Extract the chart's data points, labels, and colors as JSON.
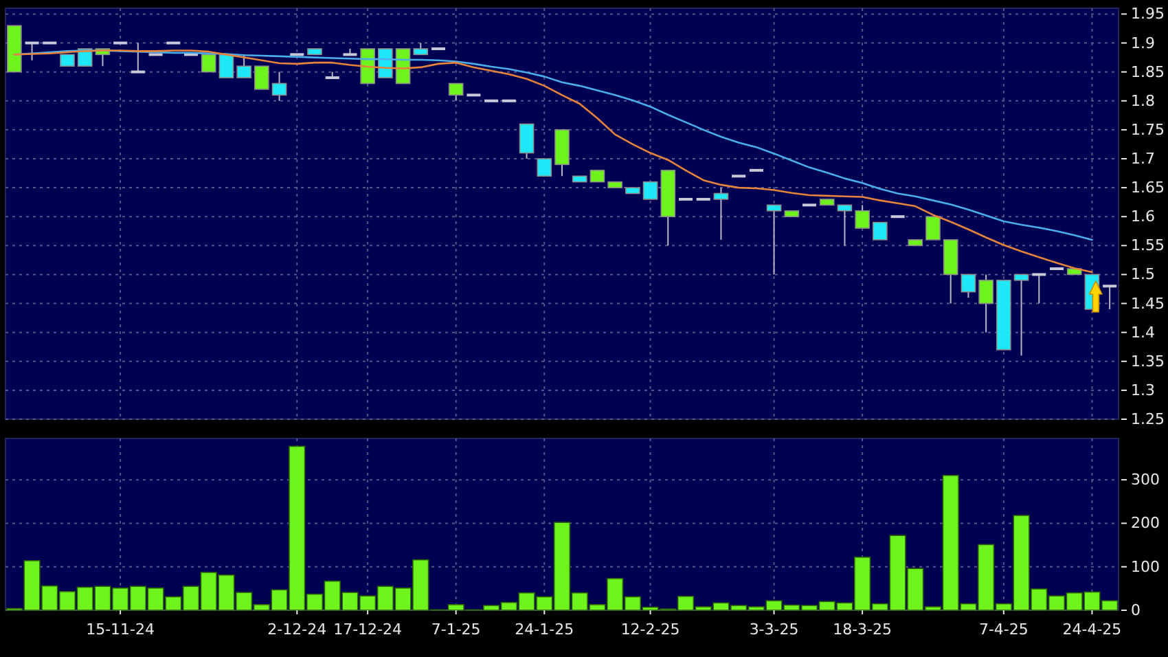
{
  "chart_data": [
    {
      "type": "candlestick",
      "categories": [
        null,
        null,
        null,
        null,
        null,
        null,
        null,
        null,
        null,
        null,
        null,
        null,
        null,
        null,
        null,
        null,
        null,
        null,
        null,
        null,
        null,
        null,
        null,
        null,
        null,
        null,
        null,
        null,
        null,
        null,
        null,
        null,
        null,
        null,
        null,
        null,
        null,
        null,
        null,
        null,
        null,
        null,
        null,
        null,
        null,
        null,
        null,
        null,
        null,
        null,
        null,
        null,
        null,
        null,
        null,
        null,
        null,
        null,
        null,
        null,
        null,
        null,
        null
      ],
      "ohlc": [
        [
          1.85,
          1.93,
          1.85,
          1.93
        ],
        [
          1.9,
          1.9,
          1.87,
          1.9
        ],
        [
          1.9,
          1.9,
          1.9,
          1.9
        ],
        [
          1.88,
          1.88,
          1.86,
          1.86
        ],
        [
          1.89,
          1.89,
          1.86,
          1.86
        ],
        [
          1.88,
          1.89,
          1.86,
          1.89
        ],
        [
          1.9,
          1.9,
          1.9,
          1.9
        ],
        [
          1.85,
          1.9,
          1.85,
          1.85
        ],
        [
          1.88,
          1.88,
          1.88,
          1.88
        ],
        [
          1.9,
          1.9,
          1.9,
          1.9
        ],
        [
          1.88,
          1.88,
          1.88,
          1.88
        ],
        [
          1.85,
          1.88,
          1.85,
          1.88
        ],
        [
          1.88,
          1.88,
          1.84,
          1.84
        ],
        [
          1.86,
          1.88,
          1.84,
          1.84
        ],
        [
          1.82,
          1.86,
          1.82,
          1.86
        ],
        [
          1.83,
          1.85,
          1.8,
          1.81
        ],
        [
          1.88,
          1.88,
          1.88,
          1.88
        ],
        [
          1.89,
          1.89,
          1.88,
          1.88
        ],
        [
          1.84,
          1.85,
          1.84,
          1.84
        ],
        [
          1.88,
          1.89,
          1.88,
          1.88
        ],
        [
          1.83,
          1.89,
          1.83,
          1.89
        ],
        [
          1.89,
          1.89,
          1.84,
          1.84
        ],
        [
          1.83,
          1.89,
          1.83,
          1.89
        ],
        [
          1.89,
          1.9,
          1.88,
          1.88
        ],
        [
          1.89,
          1.89,
          1.89,
          1.89
        ],
        [
          1.81,
          1.83,
          1.8,
          1.83
        ],
        [
          1.81,
          1.81,
          1.81,
          1.81
        ],
        [
          1.8,
          1.8,
          1.8,
          1.8
        ],
        [
          1.8,
          1.8,
          1.8,
          1.8
        ],
        [
          1.76,
          1.76,
          1.7,
          1.71
        ],
        [
          1.7,
          1.7,
          1.67,
          1.67
        ],
        [
          1.69,
          1.75,
          1.67,
          1.75
        ],
        [
          1.67,
          1.67,
          1.66,
          1.66
        ],
        [
          1.66,
          1.68,
          1.66,
          1.68
        ],
        [
          1.65,
          1.66,
          1.65,
          1.66
        ],
        [
          1.65,
          1.65,
          1.64,
          1.64
        ],
        [
          1.66,
          1.66,
          1.63,
          1.63
        ],
        [
          1.6,
          1.68,
          1.55,
          1.68
        ],
        [
          1.63,
          1.63,
          1.63,
          1.63
        ],
        [
          1.63,
          1.63,
          1.63,
          1.63
        ],
        [
          1.64,
          1.65,
          1.56,
          1.63
        ],
        [
          1.67,
          1.67,
          1.67,
          1.67
        ],
        [
          1.68,
          1.68,
          1.68,
          1.68
        ],
        [
          1.62,
          1.62,
          1.5,
          1.61
        ],
        [
          1.6,
          1.61,
          1.6,
          1.61
        ],
        [
          1.62,
          1.62,
          1.62,
          1.62
        ],
        [
          1.62,
          1.63,
          1.62,
          1.63
        ],
        [
          1.62,
          1.62,
          1.55,
          1.61
        ],
        [
          1.58,
          1.62,
          1.58,
          1.61
        ],
        [
          1.59,
          1.59,
          1.56,
          1.56
        ],
        [
          1.6,
          1.6,
          1.6,
          1.6
        ],
        [
          1.55,
          1.56,
          1.55,
          1.56
        ],
        [
          1.56,
          1.6,
          1.56,
          1.6
        ],
        [
          1.5,
          1.56,
          1.45,
          1.56
        ],
        [
          1.5,
          1.5,
          1.46,
          1.47
        ],
        [
          1.45,
          1.5,
          1.4,
          1.49
        ],
        [
          1.49,
          1.49,
          1.37,
          1.37
        ],
        [
          1.5,
          1.5,
          1.36,
          1.49
        ],
        [
          1.5,
          1.5,
          1.45,
          1.5
        ],
        [
          1.51,
          1.51,
          1.51,
          1.51
        ],
        [
          1.5,
          1.51,
          1.5,
          1.51
        ],
        [
          1.5,
          1.5,
          1.44,
          1.44
        ],
        [
          1.48,
          1.48,
          1.44,
          1.48
        ]
      ],
      "colors": [
        "#6ef41c",
        "#c8c8d8",
        "#c8c8d8",
        "#1ee8f8",
        "#1ee8f8",
        "#6ef41c",
        "#c8c8d8",
        "#c8c8d8",
        "#c8c8d8",
        "#c8c8d8",
        "#c8c8d8",
        "#6ef41c",
        "#1ee8f8",
        "#1ee8f8",
        "#6ef41c",
        "#1ee8f8",
        "#c8c8d8",
        "#1ee8f8",
        "#c8c8d8",
        "#c8c8d8",
        "#6ef41c",
        "#1ee8f8",
        "#6ef41c",
        "#1ee8f8",
        "#c8c8d8",
        "#6ef41c",
        "#c8c8d8",
        "#c8c8d8",
        "#c8c8d8",
        "#1ee8f8",
        "#1ee8f8",
        "#6ef41c",
        "#1ee8f8",
        "#6ef41c",
        "#6ef41c",
        "#1ee8f8",
        "#1ee8f8",
        "#6ef41c",
        "#c8c8d8",
        "#c8c8d8",
        "#1ee8f8",
        "#c8c8d8",
        "#c8c8d8",
        "#1ee8f8",
        "#6ef41c",
        "#c8c8d8",
        "#6ef41c",
        "#1ee8f8",
        "#6ef41c",
        "#1ee8f8",
        "#c8c8d8",
        "#6ef41c",
        "#6ef41c",
        "#6ef41c",
        "#1ee8f8",
        "#6ef41c",
        "#1ee8f8",
        "#1ee8f8",
        "#c8c8d8",
        "#c8c8d8",
        "#6ef41c",
        "#1ee8f8",
        "#c8c8d8"
      ],
      "series": [
        {
          "type": "line",
          "color": "#4aaeea",
          "values": [
            1.88,
            1.882,
            1.884,
            1.886,
            1.887,
            1.887,
            1.886,
            1.885,
            1.884,
            1.883,
            1.883,
            1.882,
            1.881,
            1.879,
            1.878,
            1.877,
            1.876,
            1.875,
            1.874,
            1.873,
            1.872,
            1.872,
            1.871,
            1.871,
            1.87,
            1.868,
            1.864,
            1.859,
            1.855,
            1.849,
            1.842,
            1.832,
            1.826,
            1.818,
            1.81,
            1.801,
            1.79,
            1.776,
            1.763,
            1.75,
            1.738,
            1.728,
            1.72,
            1.709,
            1.697,
            1.685,
            1.676,
            1.666,
            1.658,
            1.648,
            1.64,
            1.635,
            1.628,
            1.621,
            1.612,
            1.602,
            1.592,
            1.586,
            1.581,
            1.575,
            1.568,
            1.56,
            null
          ]
        },
        {
          "type": "line",
          "color": "#e6843c",
          "values": [
            1.88,
            1.881,
            1.882,
            1.884,
            1.886,
            1.887,
            1.887,
            1.886,
            1.886,
            1.887,
            1.887,
            1.885,
            1.88,
            1.875,
            1.87,
            1.865,
            1.864,
            1.866,
            1.866,
            1.862,
            1.859,
            1.857,
            1.856,
            1.858,
            1.864,
            1.866,
            1.858,
            1.852,
            1.846,
            1.838,
            1.826,
            1.81,
            1.795,
            1.77,
            1.742,
            1.725,
            1.71,
            1.698,
            1.68,
            1.663,
            1.655,
            1.65,
            1.649,
            1.646,
            1.641,
            1.637,
            1.636,
            1.635,
            1.634,
            1.628,
            1.623,
            1.618,
            1.603,
            1.591,
            1.578,
            1.564,
            1.551,
            1.54,
            1.53,
            1.52,
            1.511,
            1.504,
            null
          ]
        }
      ],
      "ylim": [
        1.25,
        1.96
      ],
      "yticks": [
        1.25,
        1.3,
        1.35,
        1.4,
        1.45,
        1.5,
        1.55,
        1.6,
        1.65,
        1.7,
        1.75,
        1.8,
        1.85,
        1.9,
        1.95
      ],
      "grid": true,
      "tick_labels": "y"
    },
    {
      "type": "bar",
      "categories": [
        null,
        null,
        null,
        null,
        null,
        null,
        "15-11-24",
        null,
        null,
        null,
        null,
        null,
        null,
        null,
        null,
        null,
        "2-12-24",
        null,
        null,
        null,
        "17-12-24",
        null,
        null,
        null,
        null,
        "7-1-25",
        null,
        null,
        null,
        null,
        "24-1-25",
        null,
        null,
        null,
        null,
        null,
        "12-2-25",
        null,
        null,
        null,
        null,
        null,
        null,
        "3-3-25",
        null,
        null,
        null,
        null,
        "18-3-25",
        null,
        null,
        null,
        null,
        null,
        null,
        null,
        "7-4-25",
        null,
        null,
        null,
        null,
        "24-4-25",
        null
      ],
      "values": [
        4,
        114,
        56,
        43,
        53,
        55,
        51,
        55,
        51,
        31,
        55,
        87,
        81,
        41,
        13,
        47,
        377,
        37,
        67,
        41,
        33,
        55,
        51,
        116,
        1,
        13,
        1,
        11,
        18,
        40,
        31,
        202,
        40,
        13,
        73,
        31,
        7,
        3,
        32,
        8,
        17,
        11,
        8,
        22,
        12,
        11,
        20,
        17,
        122,
        15,
        172,
        96,
        8,
        310,
        15,
        151,
        15,
        218,
        49,
        33,
        40,
        42,
        22
      ],
      "color": "#6ef41c",
      "ylim": [
        0,
        395
      ],
      "yticks": [
        0,
        100,
        200,
        300
      ],
      "grid": true
    }
  ]
}
